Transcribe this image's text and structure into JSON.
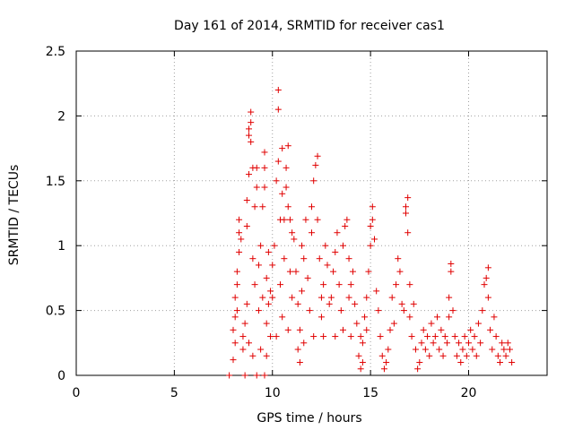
{
  "chart_data": {
    "type": "scatter",
    "title": "Day 161 of 2014, SRMTID for receiver cas1",
    "xlabel": "GPS time / hours",
    "ylabel": "SRMTID / TECUs",
    "xlim": [
      0,
      24
    ],
    "ylim": [
      0,
      2.5
    ],
    "x_ticks": [
      0,
      5,
      10,
      15,
      20
    ],
    "y_ticks": [
      0,
      0.5,
      1,
      1.5,
      2,
      2.5
    ],
    "x_tick_labels": [
      "0",
      "5",
      "10",
      "15",
      "20"
    ],
    "y_tick_labels": [
      "0",
      "0.5",
      "1",
      "1.5",
      "2",
      "2.5"
    ],
    "grid": true,
    "marker": "+",
    "series": [
      {
        "name": "SRMTID",
        "color": "#e00000",
        "points": [
          [
            7.8,
            0.0
          ],
          [
            8.6,
            0.0
          ],
          [
            9.2,
            0.0
          ],
          [
            9.6,
            0.0
          ],
          [
            8.0,
            0.12
          ],
          [
            8.0,
            0.35
          ],
          [
            8.1,
            0.45
          ],
          [
            8.1,
            0.6
          ],
          [
            8.2,
            0.7
          ],
          [
            8.2,
            0.8
          ],
          [
            8.3,
            0.95
          ],
          [
            8.3,
            1.1
          ],
          [
            8.3,
            1.2
          ],
          [
            8.4,
            1.05
          ],
          [
            8.5,
            0.3
          ],
          [
            8.5,
            0.2
          ],
          [
            8.1,
            0.25
          ],
          [
            8.2,
            0.5
          ],
          [
            8.6,
            0.4
          ],
          [
            8.7,
            0.55
          ],
          [
            8.7,
            1.15
          ],
          [
            8.7,
            1.35
          ],
          [
            8.8,
            1.55
          ],
          [
            8.8,
            1.85
          ],
          [
            8.8,
            1.9
          ],
          [
            8.9,
            1.8
          ],
          [
            8.9,
            1.95
          ],
          [
            8.9,
            2.03
          ],
          [
            9.0,
            1.6
          ],
          [
            9.0,
            0.9
          ],
          [
            9.1,
            0.7
          ],
          [
            9.1,
            1.3
          ],
          [
            9.2,
            1.45
          ],
          [
            9.2,
            1.6
          ],
          [
            8.8,
            0.25
          ],
          [
            9.0,
            0.15
          ],
          [
            9.3,
            0.5
          ],
          [
            9.3,
            0.85
          ],
          [
            9.4,
            1.0
          ],
          [
            9.5,
            0.6
          ],
          [
            9.5,
            1.3
          ],
          [
            9.6,
            1.45
          ],
          [
            9.6,
            1.6
          ],
          [
            9.6,
            1.72
          ],
          [
            9.7,
            0.4
          ],
          [
            9.7,
            0.75
          ],
          [
            9.8,
            0.95
          ],
          [
            9.8,
            0.55
          ],
          [
            9.9,
            0.3
          ],
          [
            9.9,
            0.65
          ],
          [
            9.4,
            0.2
          ],
          [
            9.7,
            0.15
          ],
          [
            10.0,
            0.6
          ],
          [
            10.0,
            0.85
          ],
          [
            10.1,
            1.0
          ],
          [
            10.2,
            1.5
          ],
          [
            10.3,
            1.65
          ],
          [
            10.3,
            2.05
          ],
          [
            10.3,
            2.2
          ],
          [
            10.4,
            0.7
          ],
          [
            10.4,
            1.2
          ],
          [
            10.5,
            1.4
          ],
          [
            10.5,
            1.75
          ],
          [
            10.6,
            1.2
          ],
          [
            10.6,
            0.9
          ],
          [
            10.7,
            1.45
          ],
          [
            10.7,
            1.6
          ],
          [
            10.8,
            1.77
          ],
          [
            10.8,
            1.3
          ],
          [
            10.9,
            1.2
          ],
          [
            10.9,
            0.8
          ],
          [
            11.0,
            1.1
          ],
          [
            11.0,
            0.6
          ],
          [
            10.2,
            0.3
          ],
          [
            10.5,
            0.45
          ],
          [
            10.8,
            0.35
          ],
          [
            11.1,
            1.05
          ],
          [
            11.2,
            0.8
          ],
          [
            11.3,
            0.55
          ],
          [
            11.3,
            0.2
          ],
          [
            11.4,
            0.1
          ],
          [
            11.4,
            0.35
          ],
          [
            11.5,
            0.65
          ],
          [
            11.5,
            1.0
          ],
          [
            11.6,
            0.9
          ],
          [
            11.7,
            1.2
          ],
          [
            11.8,
            0.75
          ],
          [
            11.9,
            0.5
          ],
          [
            12.0,
            1.3
          ],
          [
            12.0,
            1.1
          ],
          [
            12.1,
            1.5
          ],
          [
            12.2,
            1.62
          ],
          [
            12.3,
            1.69
          ],
          [
            12.3,
            1.2
          ],
          [
            12.4,
            0.9
          ],
          [
            12.5,
            0.6
          ],
          [
            12.5,
            0.45
          ],
          [
            12.6,
            0.7
          ],
          [
            12.7,
            1.0
          ],
          [
            12.8,
            0.85
          ],
          [
            12.9,
            0.55
          ],
          [
            11.6,
            0.25
          ],
          [
            12.1,
            0.3
          ],
          [
            12.6,
            0.3
          ],
          [
            13.0,
            0.6
          ],
          [
            13.1,
            0.8
          ],
          [
            13.2,
            0.95
          ],
          [
            13.3,
            1.1
          ],
          [
            13.4,
            0.7
          ],
          [
            13.5,
            0.5
          ],
          [
            13.6,
            1.0
          ],
          [
            13.7,
            1.15
          ],
          [
            13.8,
            1.2
          ],
          [
            13.9,
            0.9
          ],
          [
            13.9,
            0.6
          ],
          [
            14.0,
            0.7
          ],
          [
            14.1,
            0.8
          ],
          [
            14.2,
            0.55
          ],
          [
            14.3,
            0.4
          ],
          [
            13.2,
            0.3
          ],
          [
            13.6,
            0.35
          ],
          [
            14.0,
            0.3
          ],
          [
            14.4,
            0.15
          ],
          [
            14.5,
            0.3
          ],
          [
            14.5,
            0.05
          ],
          [
            14.6,
            0.1
          ],
          [
            14.6,
            0.25
          ],
          [
            14.7,
            0.45
          ],
          [
            14.8,
            0.35
          ],
          [
            14.8,
            0.6
          ],
          [
            14.9,
            0.8
          ],
          [
            15.0,
            1.0
          ],
          [
            15.0,
            1.15
          ],
          [
            15.1,
            1.2
          ],
          [
            15.1,
            1.3
          ],
          [
            15.2,
            1.05
          ],
          [
            15.3,
            0.65
          ],
          [
            15.4,
            0.5
          ],
          [
            15.5,
            0.3
          ],
          [
            15.6,
            0.15
          ],
          [
            15.7,
            0.05
          ],
          [
            15.8,
            0.1
          ],
          [
            15.9,
            0.2
          ],
          [
            16.0,
            0.35
          ],
          [
            16.1,
            0.6
          ],
          [
            16.2,
            0.4
          ],
          [
            16.3,
            0.7
          ],
          [
            16.4,
            0.9
          ],
          [
            16.5,
            0.8
          ],
          [
            16.6,
            0.55
          ],
          [
            16.7,
            0.5
          ],
          [
            16.8,
            1.25
          ],
          [
            16.8,
            1.3
          ],
          [
            16.9,
            1.37
          ],
          [
            16.9,
            1.1
          ],
          [
            17.0,
            0.7
          ],
          [
            17.0,
            0.45
          ],
          [
            17.1,
            0.3
          ],
          [
            17.2,
            0.55
          ],
          [
            17.3,
            0.2
          ],
          [
            17.4,
            0.05
          ],
          [
            17.5,
            0.1
          ],
          [
            17.6,
            0.25
          ],
          [
            17.7,
            0.35
          ],
          [
            17.8,
            0.2
          ],
          [
            17.9,
            0.3
          ],
          [
            18.0,
            0.15
          ],
          [
            18.1,
            0.4
          ],
          [
            18.2,
            0.25
          ],
          [
            18.3,
            0.3
          ],
          [
            18.4,
            0.45
          ],
          [
            18.5,
            0.2
          ],
          [
            18.6,
            0.35
          ],
          [
            18.7,
            0.15
          ],
          [
            18.8,
            0.3
          ],
          [
            18.9,
            0.25
          ],
          [
            19.0,
            0.45
          ],
          [
            19.0,
            0.6
          ],
          [
            19.1,
            0.8
          ],
          [
            19.1,
            0.86
          ],
          [
            19.2,
            0.5
          ],
          [
            19.3,
            0.3
          ],
          [
            19.4,
            0.15
          ],
          [
            19.5,
            0.25
          ],
          [
            19.6,
            0.1
          ],
          [
            19.7,
            0.2
          ],
          [
            19.8,
            0.3
          ],
          [
            19.9,
            0.15
          ],
          [
            20.0,
            0.25
          ],
          [
            20.1,
            0.35
          ],
          [
            20.2,
            0.2
          ],
          [
            20.3,
            0.3
          ],
          [
            20.4,
            0.15
          ],
          [
            20.5,
            0.4
          ],
          [
            20.6,
            0.25
          ],
          [
            20.7,
            0.5
          ],
          [
            20.8,
            0.7
          ],
          [
            20.9,
            0.75
          ],
          [
            21.0,
            0.83
          ],
          [
            21.0,
            0.6
          ],
          [
            21.1,
            0.35
          ],
          [
            21.2,
            0.2
          ],
          [
            21.3,
            0.45
          ],
          [
            21.4,
            0.3
          ],
          [
            21.5,
            0.15
          ],
          [
            21.6,
            0.1
          ],
          [
            21.7,
            0.25
          ],
          [
            21.8,
            0.2
          ],
          [
            21.9,
            0.15
          ],
          [
            22.0,
            0.25
          ],
          [
            22.1,
            0.2
          ],
          [
            22.2,
            0.1
          ]
        ]
      }
    ]
  }
}
